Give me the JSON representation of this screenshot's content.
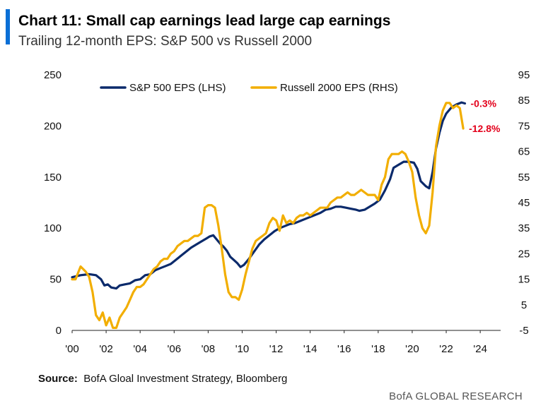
{
  "header": {
    "title": "Chart 11: Small cap earnings lead large cap earnings",
    "subtitle": "Trailing 12-month EPS: S&P 500 vs Russell 2000"
  },
  "source": {
    "label": "Source:",
    "text": "BofA Gloal Investment Strategy, Bloomberg"
  },
  "footer": {
    "brand": "BofA GLOBAL RESEARCH"
  },
  "colors": {
    "accent": "#0a6fd6",
    "sp500": "#0b2a6b",
    "russell": "#f2ae00",
    "annotation": "#e3001b"
  },
  "chart_data": {
    "type": "line",
    "xlim": [
      2000,
      2025.2
    ],
    "x_ticks": [
      2000,
      2002,
      2004,
      2006,
      2008,
      2010,
      2012,
      2014,
      2016,
      2018,
      2020,
      2022,
      2024
    ],
    "x_tick_labels": [
      "'00",
      "'02",
      "'04",
      "'06",
      "'08",
      "'10",
      "'12",
      "'14",
      "'16",
      "'18",
      "'20",
      "'22",
      "'24"
    ],
    "y_left": {
      "ylim": [
        0,
        250
      ],
      "ticks": [
        0,
        50,
        100,
        150,
        200,
        250
      ],
      "tick_labels": [
        "0",
        "50",
        "100",
        "150",
        "200",
        "250"
      ]
    },
    "y_right": {
      "ylim": [
        -5,
        95
      ],
      "ticks": [
        -5,
        5,
        15,
        25,
        35,
        45,
        55,
        65,
        75,
        85,
        95
      ],
      "tick_labels": [
        "-5",
        "5",
        "15",
        "25",
        "35",
        "45",
        "55",
        "65",
        "75",
        "85",
        "95"
      ]
    },
    "grid": false,
    "legend_position": "top",
    "series": [
      {
        "name": "S&P 500 EPS (LHS)",
        "axis": "left",
        "color": "#0b2a6b",
        "end_label": "-0.3%",
        "points": [
          [
            2000.0,
            52
          ],
          [
            2000.5,
            54
          ],
          [
            2001.0,
            55
          ],
          [
            2001.4,
            54
          ],
          [
            2001.7,
            50
          ],
          [
            2001.9,
            44
          ],
          [
            2002.1,
            45
          ],
          [
            2002.3,
            42
          ],
          [
            2002.6,
            41
          ],
          [
            2002.8,
            44
          ],
          [
            2003.1,
            45
          ],
          [
            2003.4,
            46
          ],
          [
            2003.7,
            49
          ],
          [
            2004.0,
            50
          ],
          [
            2004.3,
            54
          ],
          [
            2004.6,
            55
          ],
          [
            2004.9,
            59
          ],
          [
            2005.2,
            61
          ],
          [
            2005.5,
            63
          ],
          [
            2005.8,
            65
          ],
          [
            2006.1,
            69
          ],
          [
            2006.4,
            73
          ],
          [
            2006.7,
            77
          ],
          [
            2007.0,
            81
          ],
          [
            2007.3,
            84
          ],
          [
            2007.6,
            87
          ],
          [
            2007.9,
            90
          ],
          [
            2008.1,
            92
          ],
          [
            2008.3,
            93
          ],
          [
            2008.5,
            89
          ],
          [
            2008.7,
            85
          ],
          [
            2008.9,
            82
          ],
          [
            2009.1,
            78
          ],
          [
            2009.3,
            72
          ],
          [
            2009.5,
            69
          ],
          [
            2009.7,
            66
          ],
          [
            2009.9,
            62
          ],
          [
            2010.1,
            64
          ],
          [
            2010.4,
            70
          ],
          [
            2010.7,
            77
          ],
          [
            2011.0,
            84
          ],
          [
            2011.3,
            89
          ],
          [
            2011.6,
            93
          ],
          [
            2011.9,
            97
          ],
          [
            2012.2,
            100
          ],
          [
            2012.5,
            102
          ],
          [
            2012.8,
            104
          ],
          [
            2013.1,
            105
          ],
          [
            2013.4,
            107
          ],
          [
            2013.7,
            109
          ],
          [
            2014.0,
            111
          ],
          [
            2014.3,
            113
          ],
          [
            2014.6,
            115
          ],
          [
            2014.9,
            118
          ],
          [
            2015.2,
            119
          ],
          [
            2015.5,
            121
          ],
          [
            2015.8,
            121
          ],
          [
            2016.1,
            120
          ],
          [
            2016.4,
            119
          ],
          [
            2016.7,
            118
          ],
          [
            2016.9,
            117
          ],
          [
            2017.2,
            118
          ],
          [
            2017.5,
            121
          ],
          [
            2017.8,
            124
          ],
          [
            2018.1,
            128
          ],
          [
            2018.4,
            137
          ],
          [
            2018.7,
            148
          ],
          [
            2018.9,
            159
          ],
          [
            2019.2,
            162
          ],
          [
            2019.5,
            165
          ],
          [
            2019.8,
            165
          ],
          [
            2020.1,
            164
          ],
          [
            2020.3,
            158
          ],
          [
            2020.5,
            146
          ],
          [
            2020.8,
            141
          ],
          [
            2021.0,
            139
          ],
          [
            2021.2,
            155
          ],
          [
            2021.4,
            178
          ],
          [
            2021.6,
            193
          ],
          [
            2021.8,
            205
          ],
          [
            2022.0,
            212
          ],
          [
            2022.3,
            218
          ],
          [
            2022.6,
            221
          ],
          [
            2022.9,
            223
          ],
          [
            2023.1,
            222
          ]
        ]
      },
      {
        "name": "Russell 2000 EPS (RHS)",
        "axis": "right",
        "color": "#f2ae00",
        "end_label": "-12.8%",
        "points": [
          [
            2000.0,
            15
          ],
          [
            2000.2,
            15
          ],
          [
            2000.5,
            20
          ],
          [
            2000.8,
            18
          ],
          [
            2001.0,
            16
          ],
          [
            2001.2,
            10
          ],
          [
            2001.4,
            1
          ],
          [
            2001.6,
            -1
          ],
          [
            2001.8,
            2
          ],
          [
            2002.0,
            -3
          ],
          [
            2002.2,
            0
          ],
          [
            2002.4,
            -4
          ],
          [
            2002.6,
            -4
          ],
          [
            2002.8,
            0
          ],
          [
            2003.0,
            2
          ],
          [
            2003.2,
            4
          ],
          [
            2003.4,
            7
          ],
          [
            2003.6,
            10
          ],
          [
            2003.8,
            12
          ],
          [
            2004.0,
            12
          ],
          [
            2004.2,
            13
          ],
          [
            2004.4,
            15
          ],
          [
            2004.6,
            17
          ],
          [
            2004.8,
            19
          ],
          [
            2005.0,
            20
          ],
          [
            2005.2,
            22
          ],
          [
            2005.4,
            23
          ],
          [
            2005.6,
            23
          ],
          [
            2005.8,
            25
          ],
          [
            2006.0,
            26
          ],
          [
            2006.2,
            28
          ],
          [
            2006.4,
            29
          ],
          [
            2006.6,
            30
          ],
          [
            2006.8,
            30
          ],
          [
            2007.0,
            31
          ],
          [
            2007.2,
            32
          ],
          [
            2007.4,
            32
          ],
          [
            2007.6,
            33
          ],
          [
            2007.8,
            43
          ],
          [
            2008.0,
            44
          ],
          [
            2008.2,
            44
          ],
          [
            2008.4,
            43
          ],
          [
            2008.6,
            36
          ],
          [
            2008.8,
            27
          ],
          [
            2009.0,
            17
          ],
          [
            2009.2,
            10
          ],
          [
            2009.4,
            8
          ],
          [
            2009.6,
            8
          ],
          [
            2009.8,
            7
          ],
          [
            2010.0,
            11
          ],
          [
            2010.2,
            17
          ],
          [
            2010.4,
            22
          ],
          [
            2010.6,
            27
          ],
          [
            2010.8,
            30
          ],
          [
            2011.0,
            31
          ],
          [
            2011.2,
            32
          ],
          [
            2011.4,
            33
          ],
          [
            2011.6,
            37
          ],
          [
            2011.8,
            39
          ],
          [
            2012.0,
            38
          ],
          [
            2012.2,
            34
          ],
          [
            2012.4,
            40
          ],
          [
            2012.6,
            37
          ],
          [
            2012.8,
            38
          ],
          [
            2013.0,
            37
          ],
          [
            2013.2,
            39
          ],
          [
            2013.4,
            40
          ],
          [
            2013.6,
            40
          ],
          [
            2013.8,
            41
          ],
          [
            2014.0,
            40
          ],
          [
            2014.2,
            41
          ],
          [
            2014.4,
            42
          ],
          [
            2014.6,
            43
          ],
          [
            2014.8,
            43
          ],
          [
            2015.0,
            43
          ],
          [
            2015.2,
            45
          ],
          [
            2015.4,
            46
          ],
          [
            2015.6,
            47
          ],
          [
            2015.8,
            47
          ],
          [
            2016.0,
            48
          ],
          [
            2016.2,
            49
          ],
          [
            2016.4,
            48
          ],
          [
            2016.6,
            48
          ],
          [
            2016.8,
            49
          ],
          [
            2017.0,
            50
          ],
          [
            2017.2,
            49
          ],
          [
            2017.4,
            48
          ],
          [
            2017.6,
            48
          ],
          [
            2017.8,
            48
          ],
          [
            2018.0,
            46
          ],
          [
            2018.2,
            52
          ],
          [
            2018.4,
            55
          ],
          [
            2018.6,
            62
          ],
          [
            2018.8,
            64
          ],
          [
            2019.0,
            64
          ],
          [
            2019.2,
            64
          ],
          [
            2019.4,
            65
          ],
          [
            2019.6,
            64
          ],
          [
            2019.8,
            61
          ],
          [
            2020.0,
            57
          ],
          [
            2020.2,
            47
          ],
          [
            2020.4,
            40
          ],
          [
            2020.6,
            35
          ],
          [
            2020.8,
            33
          ],
          [
            2021.0,
            36
          ],
          [
            2021.2,
            49
          ],
          [
            2021.4,
            67
          ],
          [
            2021.6,
            75
          ],
          [
            2021.8,
            81
          ],
          [
            2022.0,
            84
          ],
          [
            2022.2,
            84
          ],
          [
            2022.4,
            82
          ],
          [
            2022.6,
            83
          ],
          [
            2022.8,
            82
          ],
          [
            2023.0,
            74
          ]
        ]
      }
    ]
  }
}
